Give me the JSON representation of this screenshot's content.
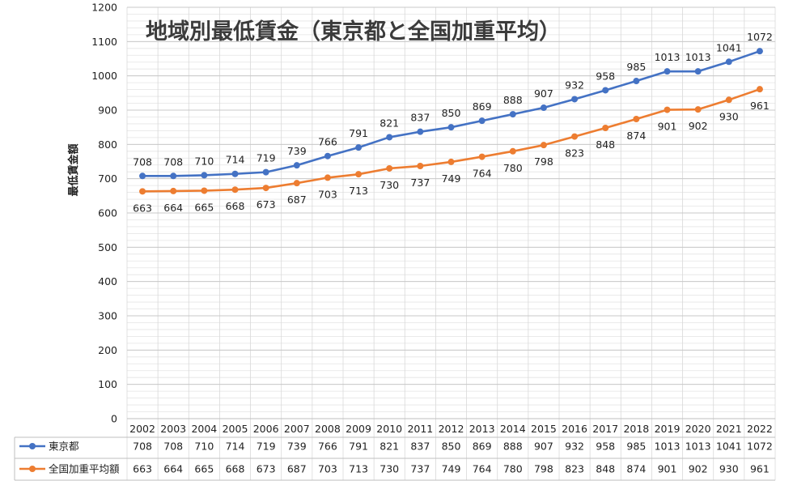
{
  "chart_data": {
    "type": "line",
    "title": "地域別最低賃金（東京都と全国加重平均）",
    "ylabel": "最低賃金額",
    "xlabel": "",
    "ylim": [
      0,
      1200
    ],
    "ytick_step": 100,
    "grid": true,
    "legend": "data-table-left",
    "categories": [
      "2002",
      "2003",
      "2004",
      "2005",
      "2006",
      "2007",
      "2008",
      "2009",
      "2010",
      "2011",
      "2012",
      "2013",
      "2014",
      "2015",
      "2016",
      "2017",
      "2018",
      "2019",
      "2020",
      "2021",
      "2022"
    ],
    "series": [
      {
        "name": "東京都",
        "color": "#4472C4",
        "label_position": "above",
        "values": [
          708,
          708,
          710,
          714,
          719,
          739,
          766,
          791,
          821,
          837,
          850,
          869,
          888,
          907,
          932,
          958,
          985,
          1013,
          1013,
          1041,
          1072
        ]
      },
      {
        "name": "全国加重平均額",
        "color": "#ED7D31",
        "label_position": "below",
        "values": [
          663,
          664,
          665,
          668,
          673,
          687,
          703,
          713,
          730,
          737,
          749,
          764,
          780,
          798,
          823,
          848,
          874,
          901,
          902,
          930,
          961
        ]
      }
    ]
  }
}
